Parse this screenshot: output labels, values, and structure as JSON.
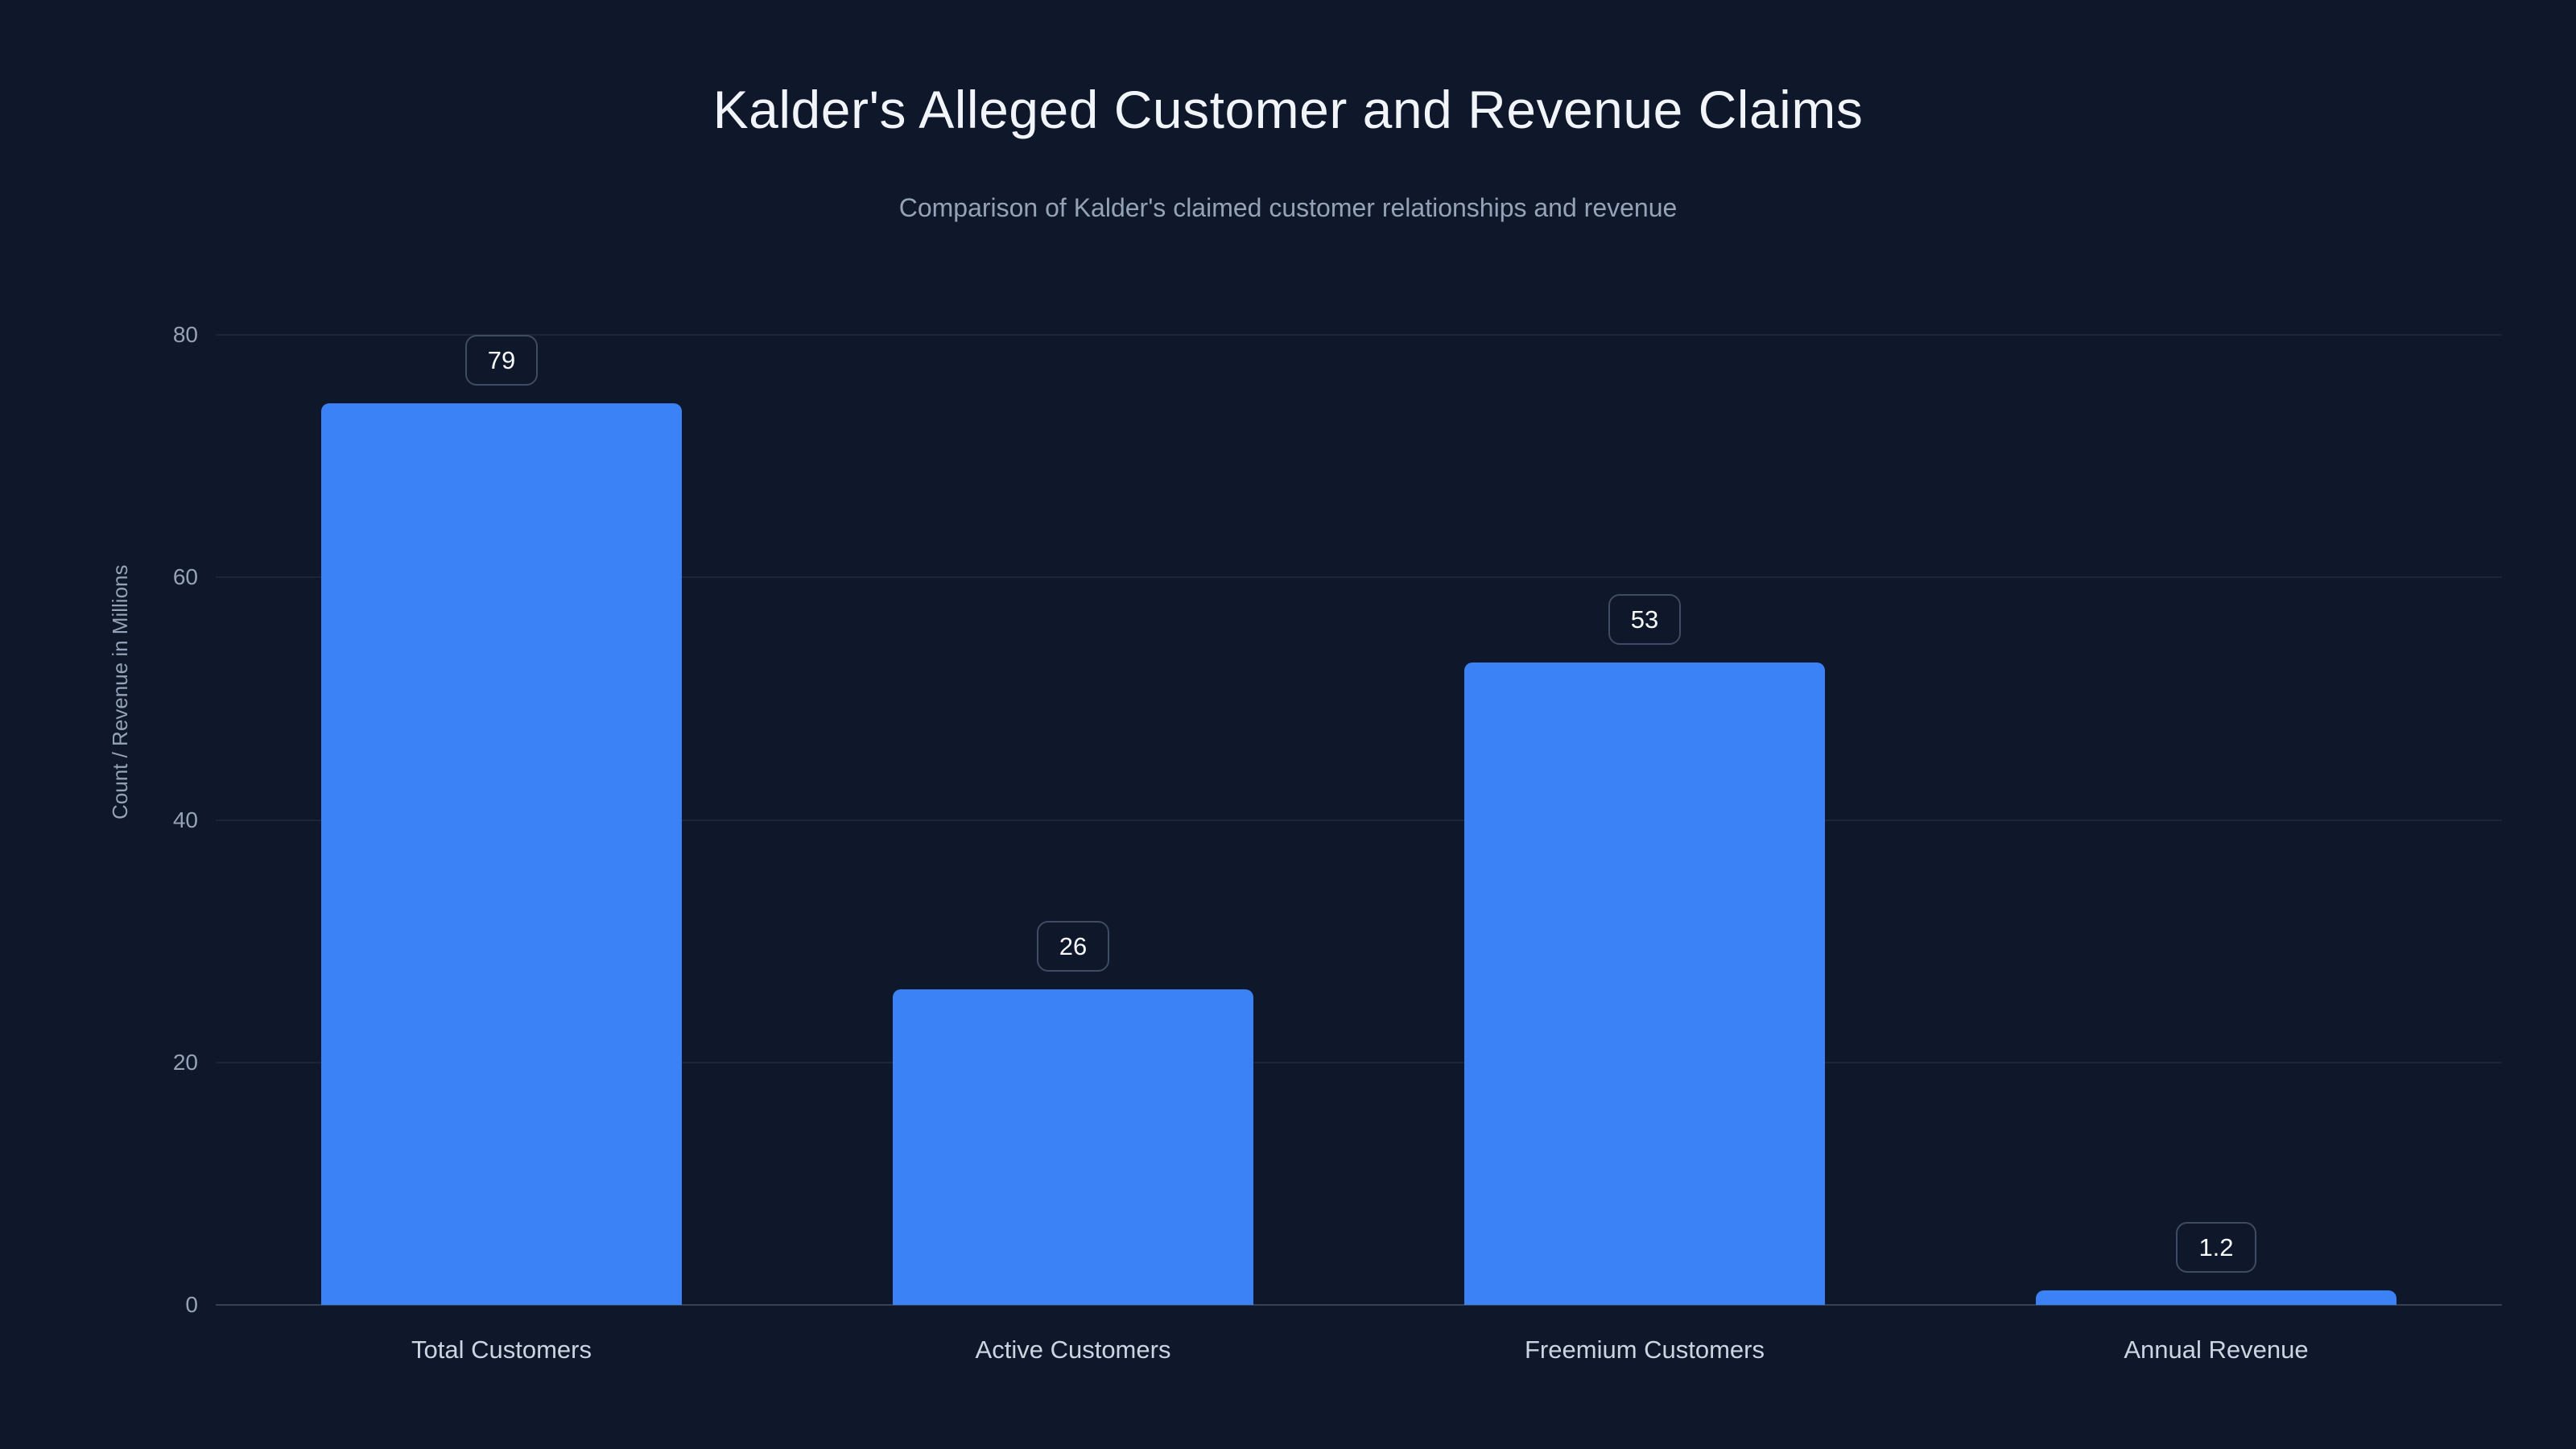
{
  "chart_data": {
    "type": "bar",
    "title": "Kalder's Alleged Customer and Revenue Claims",
    "subtitle": "Comparison of Kalder's claimed customer relationships and revenue",
    "categories": [
      "Total Customers",
      "Active Customers",
      "Freemium Customers",
      "Annual Revenue"
    ],
    "values": [
      79,
      26,
      53,
      1.2
    ],
    "value_labels": [
      "79",
      "26",
      "53",
      "1.2"
    ],
    "xlabel": "",
    "ylabel": "Count / Revenue in Millions",
    "ylim": [
      0,
      80
    ],
    "yticks": [
      0,
      20,
      40,
      60,
      80
    ],
    "grid": true,
    "legend": false,
    "bar_color": "#3b82f6",
    "background_color": "#0f172a",
    "title_color": "#f1f5f9",
    "subtitle_color": "#94a3b8"
  }
}
